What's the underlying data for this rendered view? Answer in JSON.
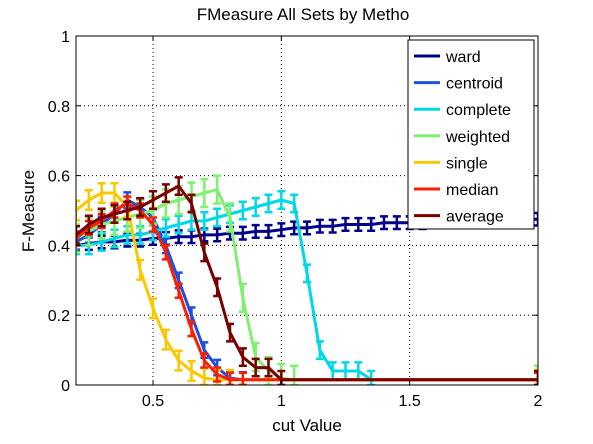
{
  "chart_data": {
    "type": "line",
    "title": "FMeasure All Sets by Metho",
    "xlabel": "cut Value",
    "ylabel": "F-Measure",
    "xlim": [
      0.2,
      2.0
    ],
    "ylim": [
      0,
      1
    ],
    "xticks": [
      0.5,
      1,
      1.5,
      2
    ],
    "xtick_labels": [
      "0.5",
      "1",
      "1.5",
      "2"
    ],
    "yticks": [
      0,
      0.2,
      0.4,
      0.6,
      0.8,
      1
    ],
    "ytick_labels": [
      "0",
      "0.2",
      "0.4",
      "0.6",
      "0.8",
      "1"
    ],
    "grid": true,
    "error_bars": true,
    "legend_position": "top-right",
    "series": [
      {
        "name": "ward",
        "color": "#00008b",
        "x": [
          0.2,
          0.25,
          0.3,
          0.35,
          0.4,
          0.45,
          0.5,
          0.55,
          0.6,
          0.65,
          0.7,
          0.75,
          0.8,
          0.85,
          0.9,
          0.95,
          1.0,
          1.05,
          1.1,
          1.15,
          1.2,
          1.25,
          1.3,
          1.35,
          1.4,
          1.45,
          1.5,
          1.55,
          1.6,
          1.65,
          1.7,
          1.75,
          1.8,
          1.85,
          1.9,
          1.95,
          2.0
        ],
        "y": [
          0.4,
          0.405,
          0.41,
          0.41,
          0.415,
          0.415,
          0.42,
          0.42,
          0.425,
          0.425,
          0.43,
          0.43,
          0.435,
          0.435,
          0.44,
          0.44,
          0.445,
          0.45,
          0.45,
          0.455,
          0.455,
          0.46,
          0.46,
          0.46,
          0.465,
          0.465,
          0.465,
          0.465,
          0.47,
          0.47,
          0.47,
          0.47,
          0.47,
          0.475,
          0.475,
          0.475,
          0.475
        ],
        "err": 0.018
      },
      {
        "name": "centroid",
        "color": "#1e50e0",
        "x": [
          0.2,
          0.25,
          0.3,
          0.35,
          0.4,
          0.45,
          0.5,
          0.55,
          0.6,
          0.65,
          0.7,
          0.75,
          0.8,
          0.85,
          2.0
        ],
        "y": [
          0.41,
          0.43,
          0.46,
          0.49,
          0.53,
          0.51,
          0.48,
          0.4,
          0.3,
          0.2,
          0.1,
          0.05,
          0.02,
          0.015,
          0.015
        ],
        "err": 0.022
      },
      {
        "name": "complete",
        "color": "#00d8e8",
        "x": [
          0.2,
          0.25,
          0.3,
          0.35,
          0.4,
          0.45,
          0.5,
          0.55,
          0.6,
          0.65,
          0.7,
          0.75,
          0.8,
          0.85,
          0.9,
          0.95,
          1.0,
          1.05,
          1.1,
          1.15,
          1.2,
          1.25,
          1.3,
          1.35,
          2.0
        ],
        "y": [
          0.4,
          0.4,
          0.41,
          0.42,
          0.43,
          0.43,
          0.44,
          0.45,
          0.46,
          0.47,
          0.47,
          0.48,
          0.49,
          0.5,
          0.51,
          0.52,
          0.53,
          0.52,
          0.32,
          0.1,
          0.04,
          0.04,
          0.04,
          0.015,
          0.015
        ],
        "err": 0.025
      },
      {
        "name": "weighted",
        "color": "#80f070",
        "x": [
          0.2,
          0.25,
          0.3,
          0.35,
          0.4,
          0.45,
          0.5,
          0.55,
          0.6,
          0.65,
          0.7,
          0.75,
          0.8,
          0.85,
          0.9,
          0.95,
          1.0,
          1.05,
          2.0
        ],
        "y": [
          0.42,
          0.44,
          0.46,
          0.47,
          0.48,
          0.49,
          0.5,
          0.52,
          0.53,
          0.54,
          0.55,
          0.56,
          0.48,
          0.25,
          0.08,
          0.04,
          0.02,
          0.015,
          0.015
        ],
        "err": 0.04
      },
      {
        "name": "single",
        "color": "#f8c800",
        "x": [
          0.2,
          0.25,
          0.3,
          0.35,
          0.4,
          0.45,
          0.5,
          0.55,
          0.6,
          0.65,
          0.7,
          0.75,
          0.8,
          2.0
        ],
        "y": [
          0.5,
          0.53,
          0.55,
          0.55,
          0.51,
          0.33,
          0.22,
          0.13,
          0.07,
          0.04,
          0.02,
          0.015,
          0.015,
          0.015
        ],
        "err": 0.028
      },
      {
        "name": "median",
        "color": "#f82000",
        "x": [
          0.2,
          0.25,
          0.3,
          0.35,
          0.4,
          0.45,
          0.5,
          0.55,
          0.6,
          0.65,
          0.7,
          0.75,
          0.8,
          0.85,
          2.0
        ],
        "y": [
          0.42,
          0.45,
          0.47,
          0.5,
          0.52,
          0.5,
          0.46,
          0.38,
          0.27,
          0.16,
          0.07,
          0.03,
          0.015,
          0.015,
          0.015
        ],
        "err": 0.02
      },
      {
        "name": "average",
        "color": "#7a0000",
        "x": [
          0.2,
          0.25,
          0.3,
          0.35,
          0.4,
          0.45,
          0.5,
          0.55,
          0.6,
          0.65,
          0.7,
          0.75,
          0.8,
          0.85,
          0.9,
          0.95,
          1.0,
          2.0
        ],
        "y": [
          0.43,
          0.46,
          0.48,
          0.49,
          0.5,
          0.51,
          0.53,
          0.55,
          0.57,
          0.52,
          0.38,
          0.28,
          0.15,
          0.08,
          0.05,
          0.05,
          0.015,
          0.015
        ],
        "err": 0.025
      }
    ]
  }
}
